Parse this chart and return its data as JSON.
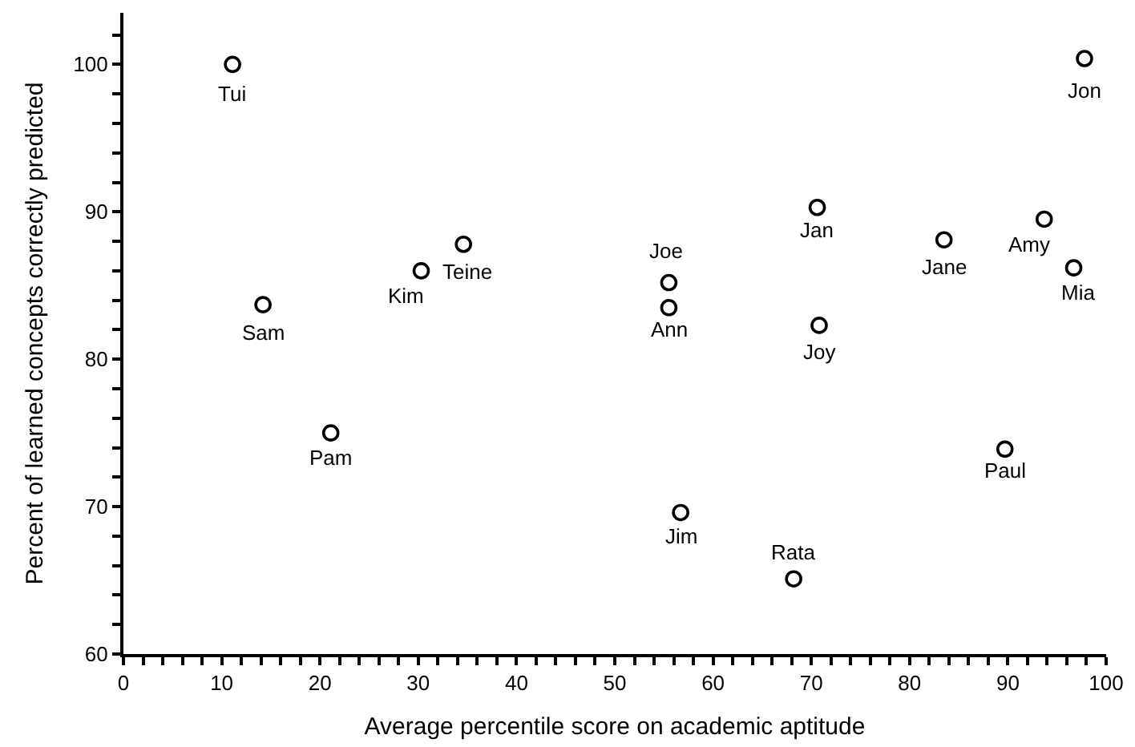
{
  "chart_data": {
    "type": "scatter",
    "xlabel": "Average percentile score on academic aptitude",
    "ylabel": "Percent of learned concepts correctly predicted",
    "x": [
      11.1,
      14.2,
      30.3,
      34.6,
      21.1,
      55.5,
      55.5,
      70.6,
      70.8,
      83.5,
      93.7,
      96.7,
      97.8,
      56.7,
      68.2,
      89.7
    ],
    "series": [
      {
        "color": "#000000",
        "values": [
          100,
          83.7,
          86.0,
          87.8,
          75.0,
          85.2,
          83.5,
          90.3,
          82.3,
          88.1,
          89.5,
          86.2,
          100.4,
          69.6,
          65.1,
          73.9
        ]
      }
    ],
    "annotations": [
      {
        "text": "Tui",
        "x": 11.1,
        "y": 100
      },
      {
        "text": "Sam",
        "x": 14.2,
        "y": 83.7
      },
      {
        "text": "Kim",
        "x": 30.3,
        "y": 86.0
      },
      {
        "text": "Teine",
        "x": 34.6,
        "y": 87.8
      },
      {
        "text": "Pam",
        "x": 21.1,
        "y": 75.0
      },
      {
        "text": "Joe",
        "x": 55.5,
        "y": 85.2
      },
      {
        "text": "Ann",
        "x": 55.5,
        "y": 83.5
      },
      {
        "text": "Jan",
        "x": 70.6,
        "y": 90.3
      },
      {
        "text": "Joy",
        "x": 70.8,
        "y": 82.3
      },
      {
        "text": "Jane",
        "x": 83.5,
        "y": 88.1
      },
      {
        "text": "Amy",
        "x": 93.7,
        "y": 89.5
      },
      {
        "text": "Mia",
        "x": 96.7,
        "y": 86.2
      },
      {
        "text": "Jon",
        "x": 97.8,
        "y": 100.4
      },
      {
        "text": "Jim",
        "x": 56.7,
        "y": 69.6
      },
      {
        "text": "Rata",
        "x": 68.2,
        "y": 65.1
      },
      {
        "text": "Paul",
        "x": 89.7,
        "y": 73.9
      }
    ],
    "xlim": [
      0,
      100
    ],
    "ylim": [
      60,
      103.5
    ],
    "xticks": [
      0,
      {
        "value": 2,
        "label": null
      },
      {
        "value": 4,
        "label": null
      },
      {
        "value": 6,
        "label": null
      },
      {
        "value": 8,
        "label": null
      },
      10,
      {
        "value": 12,
        "label": null
      },
      {
        "value": 14,
        "label": null
      },
      {
        "value": 16,
        "label": null
      },
      {
        "value": 18,
        "label": null
      },
      20,
      {
        "value": 22,
        "label": null
      },
      {
        "value": 24,
        "label": null
      },
      {
        "value": 26,
        "label": null
      },
      {
        "value": 28,
        "label": null
      },
      30,
      {
        "value": 32,
        "label": null
      },
      {
        "value": 34,
        "label": null
      },
      {
        "value": 36,
        "label": null
      },
      {
        "value": 38,
        "label": null
      },
      40,
      {
        "value": 42,
        "label": null
      },
      {
        "value": 44,
        "label": null
      },
      {
        "value": 46,
        "label": null
      },
      {
        "value": 48,
        "label": null
      },
      50,
      {
        "value": 52,
        "label": null
      },
      {
        "value": 54,
        "label": null
      },
      {
        "value": 56,
        "label": null
      },
      {
        "value": 58,
        "label": null
      },
      60,
      {
        "value": 62,
        "label": null
      },
      {
        "value": 64,
        "label": null
      },
      {
        "value": 66,
        "label": null
      },
      {
        "value": 68,
        "label": null
      },
      70,
      {
        "value": 72,
        "label": null
      },
      {
        "value": 74,
        "label": null
      },
      {
        "value": 76,
        "label": null
      },
      {
        "value": 78,
        "label": null
      },
      80,
      {
        "value": 82,
        "label": null
      },
      {
        "value": 84,
        "label": null
      },
      {
        "value": 86,
        "label": null
      },
      {
        "value": 88,
        "label": null
      },
      90,
      {
        "value": 92,
        "label": null
      },
      {
        "value": 94,
        "label": null
      },
      {
        "value": 96,
        "label": null
      },
      {
        "value": 98,
        "label": null
      },
      100
    ],
    "yticks": [
      60,
      {
        "value": 62,
        "label": null
      },
      {
        "value": 64,
        "label": null
      },
      {
        "value": 66,
        "label": null
      },
      {
        "value": 68,
        "label": null
      },
      70,
      {
        "value": 72,
        "label": null
      },
      {
        "value": 74,
        "label": null
      },
      {
        "value": 76,
        "label": null
      },
      {
        "value": 78,
        "label": null
      },
      80,
      {
        "value": 82,
        "label": null
      },
      {
        "value": 84,
        "label": null
      },
      {
        "value": 86,
        "label": null
      },
      {
        "value": 88,
        "label": null
      },
      90,
      {
        "value": 92,
        "label": null
      },
      {
        "value": 94,
        "label": null
      },
      {
        "value": 96,
        "label": null
      },
      {
        "value": 98,
        "label": null
      },
      100,
      {
        "value": 102,
        "label": null
      }
    ],
    "marker": "circle"
  }
}
